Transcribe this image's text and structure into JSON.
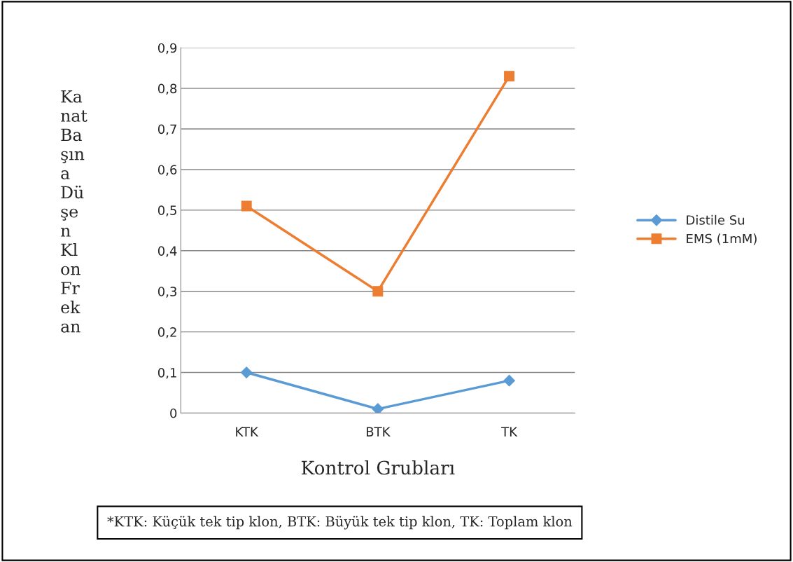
{
  "chart_data": {
    "type": "line",
    "xlabel": "Kontrol Grubları",
    "ylabel": "Ka\nnat\nBa\nşın\na\nDü\nşe\nn\nKl\non\nFr\nek\nan",
    "categories": [
      "KTK",
      "BTK",
      "TK"
    ],
    "series": [
      {
        "name": "Distile Su",
        "color": "#5b9bd5",
        "marker": "diamond",
        "values": [
          0.1,
          0.01,
          0.08
        ]
      },
      {
        "name": "EMS (1mM)",
        "color": "#ed7d31",
        "marker": "square",
        "values": [
          0.51,
          0.3,
          0.83
        ]
      }
    ],
    "ylim": [
      0,
      0.9
    ],
    "yticks": [
      {
        "value": 0,
        "label": "0"
      },
      {
        "value": 0.1,
        "label": "0,1"
      },
      {
        "value": 0.2,
        "label": "0,2"
      },
      {
        "value": 0.3,
        "label": "0,3"
      },
      {
        "value": 0.4,
        "label": "0,4"
      },
      {
        "value": 0.5,
        "label": "0,5"
      },
      {
        "value": 0.6,
        "label": "0,6"
      },
      {
        "value": 0.7,
        "label": "0,7"
      },
      {
        "value": 0.8,
        "label": "0,8"
      },
      {
        "value": 0.9,
        "label": "0,9"
      }
    ],
    "grid": "y",
    "legend": "right",
    "annotations": [
      "*KTK: Küçük tek tip klon, BTK: Büyük tek tip klon, TK: Toplam klon"
    ]
  }
}
